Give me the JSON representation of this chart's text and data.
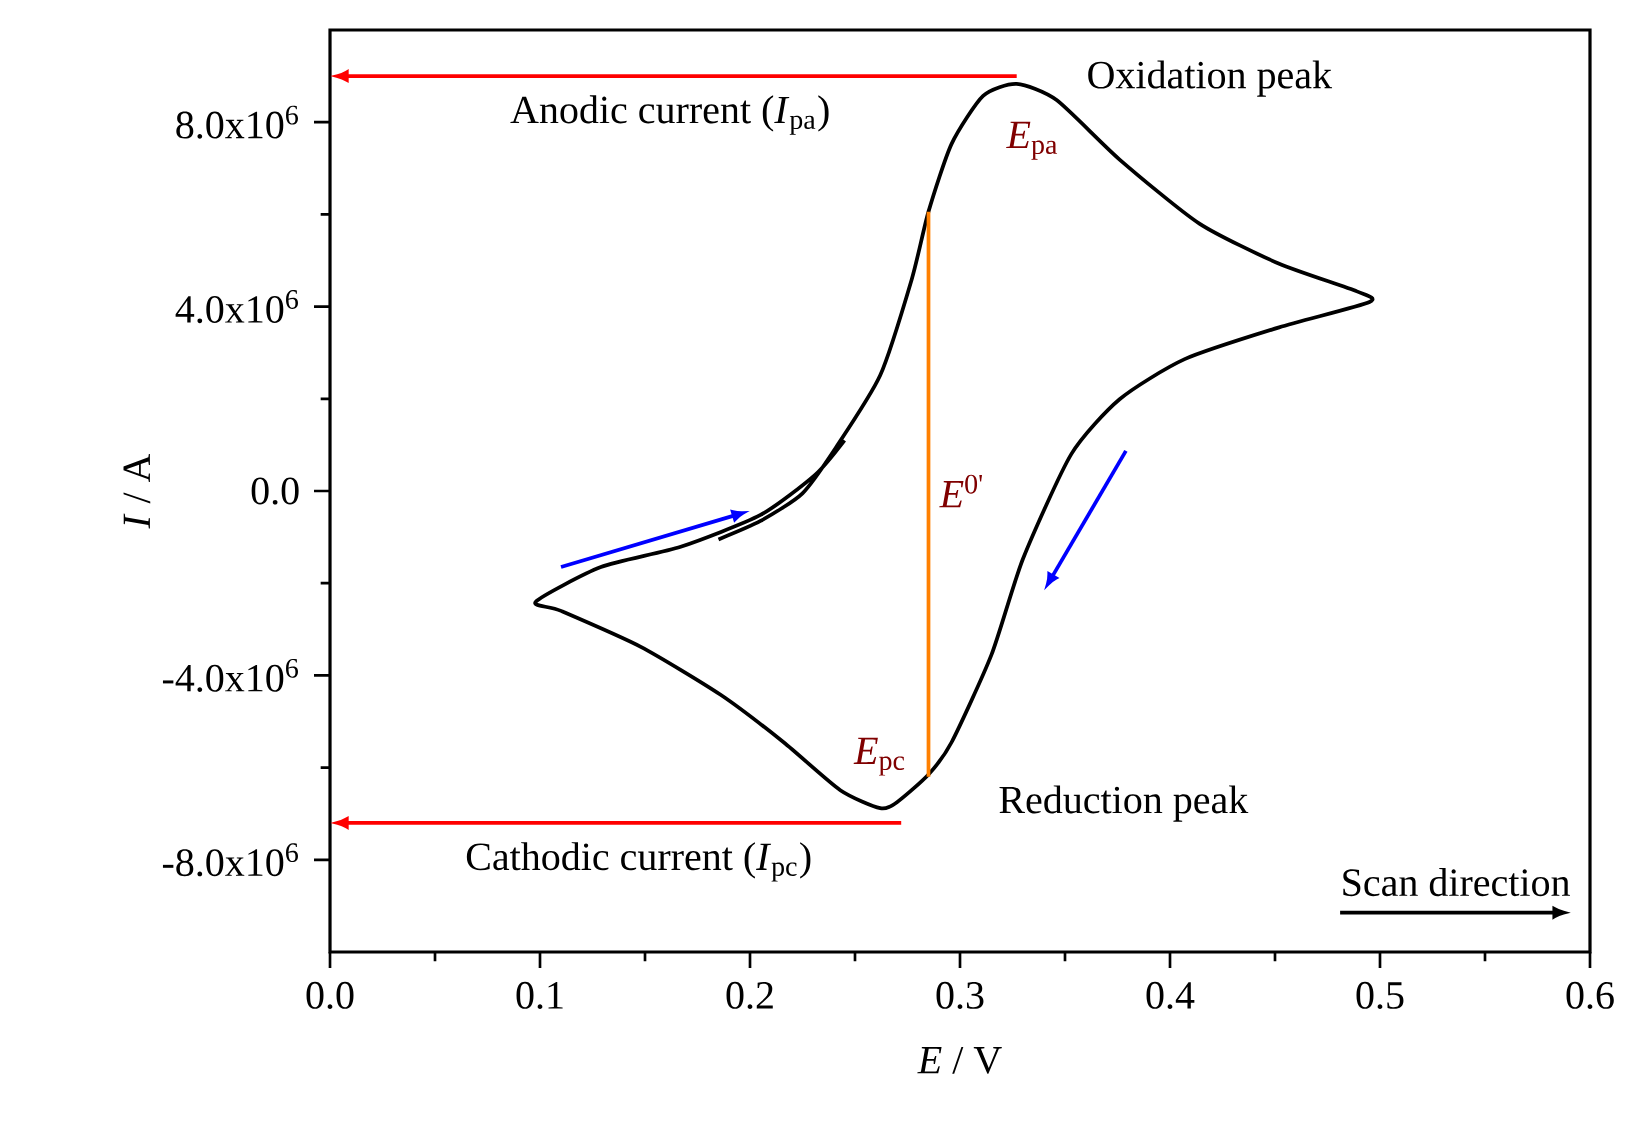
{
  "chart_data": {
    "type": "line",
    "xlabel": "*E* / V",
    "ylabel": "*I* / A",
    "xlim": [
      0,
      0.6
    ],
    "ylim": [
      -10000000,
      10000000
    ],
    "xticks": [
      {
        "value": 0,
        "label": "0.0"
      },
      {
        "value": 0.1,
        "label": "0.1"
      },
      {
        "value": 0.2,
        "label": "0.2"
      },
      {
        "value": 0.3,
        "label": "0.3"
      },
      {
        "value": 0.4,
        "label": "0.4"
      },
      {
        "value": 0.5,
        "label": "0.5"
      },
      {
        "value": 0.6,
        "label": "0.6"
      }
    ],
    "yticks": [
      {
        "value": -8000000,
        "label": "-8.0x10$^{6}$"
      },
      {
        "value": -4000000,
        "label": "-4.0x10$^{6}$"
      },
      {
        "value": 0,
        "label": "0.0"
      },
      {
        "value": 4000000,
        "label": "4.0x10$^{6}$"
      },
      {
        "value": 8000000,
        "label": "8.0x10$^{6}$"
      }
    ],
    "series": [
      {
        "color": "#000000",
        "x": [
          0.185,
          0.205,
          0.225,
          0.241,
          0.262,
          0.277,
          0.285,
          0.296,
          0.311,
          0.327,
          0.346,
          0.376,
          0.414,
          0.452,
          0.489,
          0.495,
          0.452,
          0.407,
          0.376,
          0.353,
          0.33,
          0.315,
          0.296,
          0.285,
          0.27,
          0.262,
          0.243,
          0.216,
          0.186,
          0.148,
          0.11,
          0.098,
          0.129,
          0.167,
          0.205,
          0.231,
          0.245
        ],
        "values": [
          -1050000,
          -650000,
          -50000,
          950000,
          2510000,
          4590000,
          6060000,
          7530000,
          8570000,
          8830000,
          8480000,
          7190000,
          5800000,
          4930000,
          4330000,
          4100000,
          3550000,
          2860000,
          1990000,
          800000,
          -1470000,
          -3550000,
          -5450000,
          -6150000,
          -6750000,
          -6880000,
          -6490000,
          -5450000,
          -4420000,
          -3380000,
          -2600000,
          -2400000,
          -1650000,
          -1210000,
          -520000,
          350000,
          1100000
        ]
      },
      {
        "color": "#ff8000",
        "x": [
          0.285,
          0.285
        ],
        "values": [
          6060000,
          -6200000
        ]
      }
    ],
    "annotations": [
      "Anodic current (*I*$_{pa}$)",
      "Cathodic current (*I*$_{pc}$)",
      {
        "text": "Oxidation peak",
        "x": 0.327,
        "y": 8830000
      },
      {
        "text": "Reduction peak",
        "x": 0.285,
        "y": -6200000
      },
      {
        "text": "*E*$_{pa}$",
        "x": 0.327,
        "y": 8830000
      },
      {
        "text": "*E*$_{pc}$",
        "x": 0.262,
        "y": -6880000
      },
      {
        "text": "*E*$^{0'}$",
        "x": 0.285,
        "y": 0
      },
      "Scan direction"
    ]
  }
}
